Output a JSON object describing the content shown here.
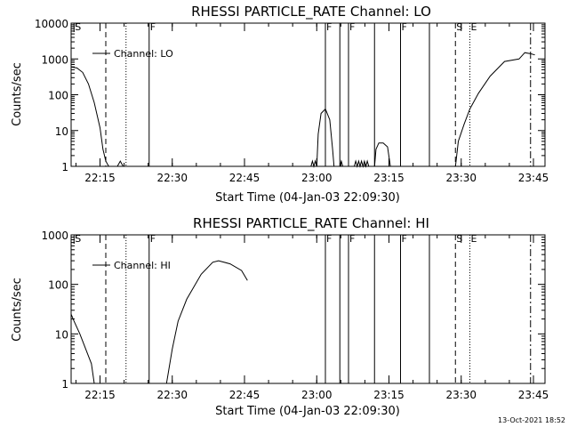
{
  "footer": {
    "timestamp": "13-Oct-2021 18:52"
  },
  "chart_data": [
    {
      "type": "line",
      "title": "RHESSI PARTICLE_RATE Channel: LO",
      "xlabel": "Start Time (04-Jan-03 22:09:30)",
      "ylabel": "Counts/sec",
      "y_scale": "log",
      "ylim": [
        1,
        10000
      ],
      "xlim_minutes": [
        22.15,
        23.79
      ],
      "x_ticks": [
        {
          "label": "22:15",
          "value": 22.25
        },
        {
          "label": "22:30",
          "value": 22.5
        },
        {
          "label": "22:45",
          "value": 22.75
        },
        {
          "label": "23:00",
          "value": 23.0
        },
        {
          "label": "23:15",
          "value": 23.25
        },
        {
          "label": "23:30",
          "value": 23.5
        },
        {
          "label": "23:45",
          "value": 23.75
        }
      ],
      "y_ticks": [
        "1",
        "10",
        "100",
        "1000",
        "10000"
      ],
      "legend": {
        "label": "Channel: LO",
        "position": "top-left"
      },
      "markers": [
        {
          "label": "S",
          "x": 22.16,
          "style": "solid-short"
        },
        {
          "label": "",
          "x": 22.27,
          "style": "dashed"
        },
        {
          "label": "",
          "x": 22.34,
          "style": "dotted"
        },
        {
          "label": "F",
          "x": 22.42,
          "style": "solid"
        },
        {
          "label": "F",
          "x": 23.03,
          "style": "solid"
        },
        {
          "label": "",
          "x": 23.08,
          "style": "solid"
        },
        {
          "label": "F",
          "x": 23.11,
          "style": "solid"
        },
        {
          "label": "",
          "x": 23.2,
          "style": "solid"
        },
        {
          "label": "F",
          "x": 23.29,
          "style": "solid"
        },
        {
          "label": "",
          "x": 23.39,
          "style": "solid"
        },
        {
          "label": "S",
          "x": 23.48,
          "style": "dashed"
        },
        {
          "label": "E",
          "x": 23.53,
          "style": "dotted"
        },
        {
          "label": "",
          "x": 23.74,
          "style": "dashdot"
        }
      ],
      "series": [
        {
          "name": "Channel: LO",
          "points": [
            [
              22.15,
              600
            ],
            [
              22.17,
              560
            ],
            [
              22.19,
              420
            ],
            [
              22.21,
              200
            ],
            [
              22.23,
              60
            ],
            [
              22.25,
              12
            ],
            [
              22.26,
              3
            ],
            [
              22.27,
              1.4
            ],
            [
              22.28,
              1
            ],
            [
              22.31,
              1
            ],
            [
              22.32,
              1.4
            ],
            [
              22.33,
              1
            ],
            [
              22.98,
              1
            ],
            [
              22.985,
              1.4
            ],
            [
              22.99,
              1
            ],
            [
              22.995,
              1.4
            ],
            [
              23.0,
              1
            ],
            [
              23.005,
              8
            ],
            [
              23.015,
              30
            ],
            [
              23.03,
              40
            ],
            [
              23.045,
              20
            ],
            [
              23.055,
              3
            ],
            [
              23.06,
              1
            ],
            [
              23.08,
              1
            ],
            [
              23.085,
              1.4
            ],
            [
              23.09,
              1
            ],
            [
              23.13,
              1
            ],
            [
              23.135,
              1.4
            ],
            [
              23.14,
              1
            ],
            [
              23.145,
              1.4
            ],
            [
              23.15,
              1
            ],
            [
              23.155,
              1.4
            ],
            [
              23.16,
              1
            ],
            [
              23.165,
              1.4
            ],
            [
              23.17,
              1
            ],
            [
              23.175,
              1.4
            ],
            [
              23.18,
              1
            ],
            [
              23.2,
              1
            ],
            [
              23.205,
              3
            ],
            [
              23.215,
              4.5
            ],
            [
              23.23,
              4.5
            ],
            [
              23.245,
              3.5
            ],
            [
              23.255,
              1
            ],
            [
              23.48,
              1
            ],
            [
              23.49,
              5
            ],
            [
              23.51,
              15
            ],
            [
              23.53,
              40
            ],
            [
              23.56,
              110
            ],
            [
              23.6,
              330
            ],
            [
              23.65,
              850
            ],
            [
              23.7,
              1000
            ],
            [
              23.72,
              1500
            ],
            [
              23.74,
              1400
            ],
            [
              23.755,
              1300
            ]
          ]
        }
      ]
    },
    {
      "type": "line",
      "title": "RHESSI PARTICLE_RATE Channel: HI",
      "xlabel": "Start Time (04-Jan-03 22:09:30)",
      "ylabel": "Counts/sec",
      "y_scale": "log",
      "ylim": [
        1,
        1000
      ],
      "xlim_minutes": [
        22.15,
        23.79
      ],
      "x_ticks": [
        {
          "label": "22:15",
          "value": 22.25
        },
        {
          "label": "22:30",
          "value": 22.5
        },
        {
          "label": "22:45",
          "value": 22.75
        },
        {
          "label": "23:00",
          "value": 23.0
        },
        {
          "label": "23:15",
          "value": 23.25
        },
        {
          "label": "23:30",
          "value": 23.5
        },
        {
          "label": "23:45",
          "value": 23.75
        }
      ],
      "y_ticks": [
        "1",
        "10",
        "100",
        "1000"
      ],
      "legend": {
        "label": "Channel: HI",
        "position": "top-left"
      },
      "markers": [
        {
          "label": "S",
          "x": 22.16,
          "style": "solid-short"
        },
        {
          "label": "",
          "x": 22.27,
          "style": "dashed"
        },
        {
          "label": "",
          "x": 22.34,
          "style": "dotted"
        },
        {
          "label": "F",
          "x": 22.42,
          "style": "solid"
        },
        {
          "label": "F",
          "x": 23.03,
          "style": "solid"
        },
        {
          "label": "",
          "x": 23.08,
          "style": "solid"
        },
        {
          "label": "F",
          "x": 23.11,
          "style": "solid"
        },
        {
          "label": "",
          "x": 23.2,
          "style": "solid"
        },
        {
          "label": "F",
          "x": 23.29,
          "style": "solid"
        },
        {
          "label": "",
          "x": 23.39,
          "style": "solid"
        },
        {
          "label": "S",
          "x": 23.48,
          "style": "dashed"
        },
        {
          "label": "E",
          "x": 23.53,
          "style": "dotted"
        },
        {
          "label": "",
          "x": 23.74,
          "style": "dashdot"
        }
      ],
      "series": [
        {
          "name": "Channel: HI",
          "points": [
            [
              22.15,
              25
            ],
            [
              22.16,
              18
            ],
            [
              22.18,
              10
            ],
            [
              22.2,
              5
            ],
            [
              22.22,
              2.5
            ],
            [
              22.23,
              1
            ],
            [
              22.48,
              1
            ],
            [
              22.5,
              5
            ],
            [
              22.52,
              18
            ],
            [
              22.55,
              50
            ],
            [
              22.6,
              160
            ],
            [
              22.64,
              280
            ],
            [
              22.66,
              300
            ],
            [
              22.7,
              260
            ],
            [
              22.74,
              190
            ],
            [
              22.76,
              120
            ]
          ]
        }
      ]
    }
  ]
}
